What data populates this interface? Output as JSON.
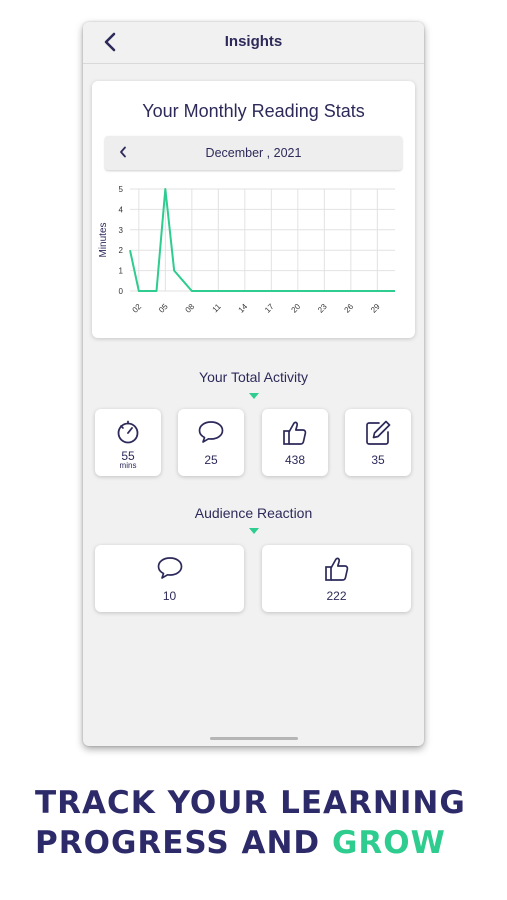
{
  "header": {
    "title": "Insights",
    "back_icon": "chevron-left-icon"
  },
  "stats": {
    "title": "Your Monthly Reading Stats",
    "month": "December , 2021",
    "prev_icon": "chevron-left-icon"
  },
  "chart_data": {
    "type": "line",
    "title": "",
    "xlabel": "",
    "ylabel": "Minutes",
    "x_tick_labels": [
      "02",
      "05",
      "08",
      "11",
      "14",
      "17",
      "20",
      "23",
      "26",
      "29"
    ],
    "y_tick_labels": [
      "0",
      "1",
      "2",
      "3",
      "4",
      "5"
    ],
    "ylim": [
      0,
      5
    ],
    "xlim": [
      1,
      31
    ],
    "grid": true,
    "series": [
      {
        "color": "#2ecc8e",
        "x": [
          1,
          2,
          3,
          4,
          5,
          6,
          7,
          8,
          9,
          10,
          11,
          12,
          13,
          14,
          15,
          16,
          17,
          18,
          19,
          20,
          21,
          22,
          23,
          24,
          25,
          26,
          27,
          28,
          29,
          30,
          31
        ],
        "y": [
          2,
          0,
          0,
          0,
          5,
          1,
          0.5,
          0,
          0,
          0,
          0,
          0,
          0,
          0,
          0,
          0,
          0,
          0,
          0,
          0,
          0,
          0,
          0,
          0,
          0,
          0,
          0,
          0,
          0,
          0,
          0
        ]
      }
    ]
  },
  "activity": {
    "title": "Your Total Activity",
    "items": [
      {
        "icon": "timer-icon",
        "value": "55",
        "unit": "mins"
      },
      {
        "icon": "comment-icon",
        "value": "25"
      },
      {
        "icon": "thumbs-up-icon",
        "value": "438"
      },
      {
        "icon": "edit-icon",
        "value": "35"
      }
    ]
  },
  "audience": {
    "title": "Audience Reaction",
    "items": [
      {
        "icon": "comment-icon",
        "value": "10"
      },
      {
        "icon": "thumbs-up-icon",
        "value": "222"
      }
    ]
  },
  "tagline": {
    "line1": "TRACK YOUR LEARNING",
    "line2_prefix": "PROGRESS AND ",
    "line2_accent": "GROW"
  },
  "colors": {
    "accent": "#2ecc8e",
    "primary_text": "#2d2a5a",
    "background": "#f1f1f1"
  }
}
